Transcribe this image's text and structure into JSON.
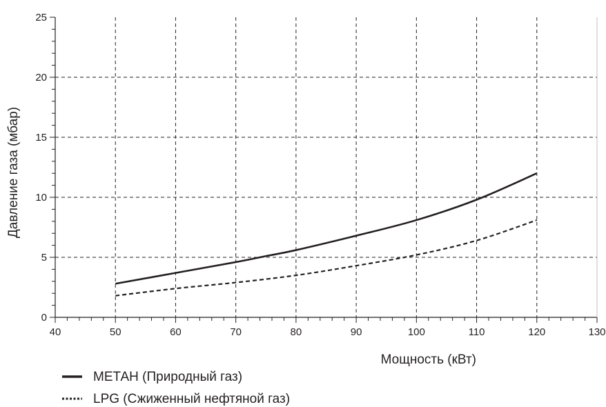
{
  "chart_data": {
    "type": "line",
    "xlabel": "Мощность (кВт)",
    "ylabel": "Давление газа (мбар)",
    "xlim": [
      40,
      130
    ],
    "ylim": [
      0,
      25
    ],
    "x_ticks": [
      "40",
      "50",
      "60",
      "70",
      "80",
      "90",
      "100",
      "110",
      "120",
      "130"
    ],
    "y_ticks": [
      "0",
      "5",
      "10",
      "15",
      "20",
      "25"
    ],
    "x_minor_step": 2,
    "y_minor_step": 1,
    "grid": true,
    "legend_position": "bottom-left",
    "series": [
      {
        "name": "МЕТАН (Природный газ)",
        "style": "solid",
        "color": "#231f20",
        "x": [
          50,
          60,
          70,
          75,
          80,
          90,
          100,
          110,
          120
        ],
        "y": [
          2.8,
          3.7,
          4.6,
          5.1,
          5.6,
          6.8,
          8.1,
          9.8,
          12.0
        ]
      },
      {
        "name": "LPG (Сжиженный нефтяной газ)",
        "style": "dashed",
        "color": "#231f20",
        "x": [
          50,
          60,
          70,
          80,
          90,
          100,
          110,
          120
        ],
        "y": [
          1.8,
          2.4,
          2.9,
          3.5,
          4.3,
          5.2,
          6.4,
          8.1
        ]
      }
    ]
  }
}
